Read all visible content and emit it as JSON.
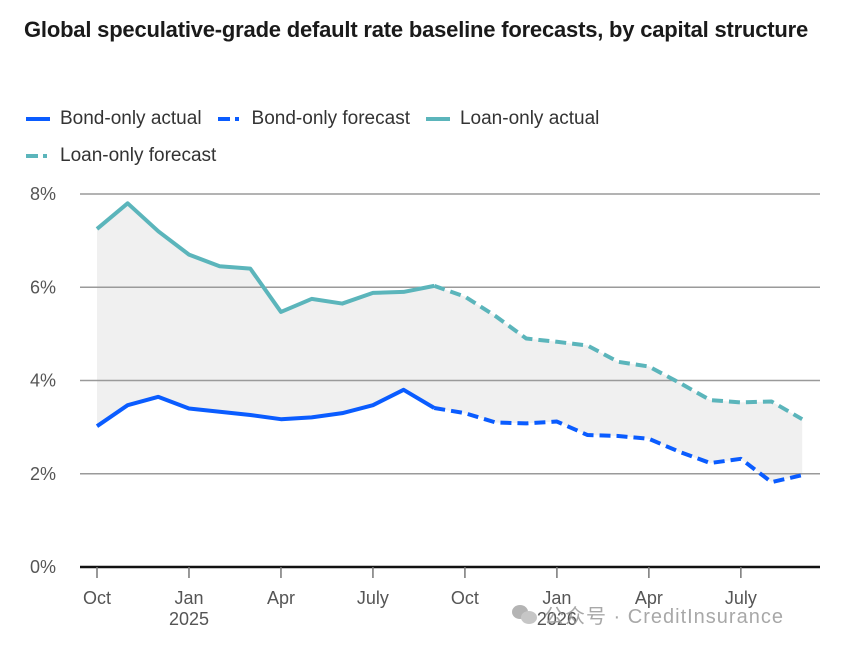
{
  "title": "Global speculative-grade default rate baseline forecasts, by capital structure",
  "watermark": "公众号 · CreditInsurance",
  "legend": [
    {
      "label": "Bond-only actual",
      "series": "bond_actual"
    },
    {
      "label": "Bond-only forecast",
      "series": "bond_forecast"
    },
    {
      "label": "Loan-only actual",
      "series": "loan_actual"
    },
    {
      "label": "Loan-only forecast",
      "series": "loan_forecast"
    }
  ],
  "colors": {
    "bond": "#0a5cff",
    "loan": "#5bb5bb",
    "band": "#f0f0f0",
    "grid": "#9a9a9a",
    "axis": "#111111"
  },
  "chart_data": {
    "type": "line",
    "title": "Global speculative-grade default rate baseline forecasts, by capital structure",
    "xlabel": "",
    "ylabel": "",
    "ylim": [
      0,
      8
    ],
    "yticks": [
      0,
      2,
      4,
      6,
      8
    ],
    "ytick_labels": [
      "0%",
      "2%",
      "4%",
      "6%",
      "8%"
    ],
    "grid": true,
    "legend_position": "top-left",
    "x": [
      "Oct 2024",
      "Nov 2024",
      "Dec 2024",
      "Jan 2025",
      "Feb 2025",
      "Mar 2025",
      "Apr 2025",
      "May 2025",
      "Jun 2025",
      "Jul 2025",
      "Aug 2025",
      "Sep 2025",
      "Oct 2025",
      "Nov 2025",
      "Dec 2025",
      "Jan 2026",
      "Feb 2026",
      "Mar 2026",
      "Apr 2026",
      "May 2026",
      "Jun 2026",
      "Jul 2026",
      "Aug 2026",
      "Sep 2026"
    ],
    "xticks": [
      {
        "index": 0,
        "label": "Oct",
        "sublabel": ""
      },
      {
        "index": 3,
        "label": "Jan",
        "sublabel": "2025"
      },
      {
        "index": 6,
        "label": "Apr",
        "sublabel": ""
      },
      {
        "index": 9,
        "label": "July",
        "sublabel": ""
      },
      {
        "index": 12,
        "label": "Oct",
        "sublabel": ""
      },
      {
        "index": 15,
        "label": "Jan",
        "sublabel": "2026"
      },
      {
        "index": 18,
        "label": "Apr",
        "sublabel": ""
      },
      {
        "index": 21,
        "label": "July",
        "sublabel": ""
      }
    ],
    "x_count_axis": 24.55,
    "series": [
      {
        "name": "Bond-only actual",
        "key": "bond_actual",
        "start_index": 0,
        "values": [
          3.02,
          3.47,
          3.65,
          3.4,
          3.33,
          3.26,
          3.17,
          3.21,
          3.3,
          3.47,
          3.8,
          3.41
        ]
      },
      {
        "name": "Bond-only forecast",
        "key": "bond_forecast",
        "start_index": 11,
        "values": [
          3.41,
          3.3,
          3.1,
          3.08,
          3.12,
          2.83,
          2.81,
          2.75,
          2.47,
          2.23,
          2.32,
          1.82,
          1.97
        ]
      },
      {
        "name": "Loan-only actual",
        "key": "loan_actual",
        "start_index": 0,
        "values": [
          7.25,
          7.8,
          7.2,
          6.7,
          6.45,
          6.4,
          5.47,
          5.75,
          5.65,
          5.88,
          5.9,
          6.03
        ]
      },
      {
        "name": "Loan-only forecast",
        "key": "loan_forecast",
        "start_index": 11,
        "values": [
          6.03,
          5.8,
          5.38,
          4.9,
          4.83,
          4.75,
          4.4,
          4.3,
          3.95,
          3.58,
          3.53,
          3.55,
          3.17
        ]
      }
    ]
  }
}
